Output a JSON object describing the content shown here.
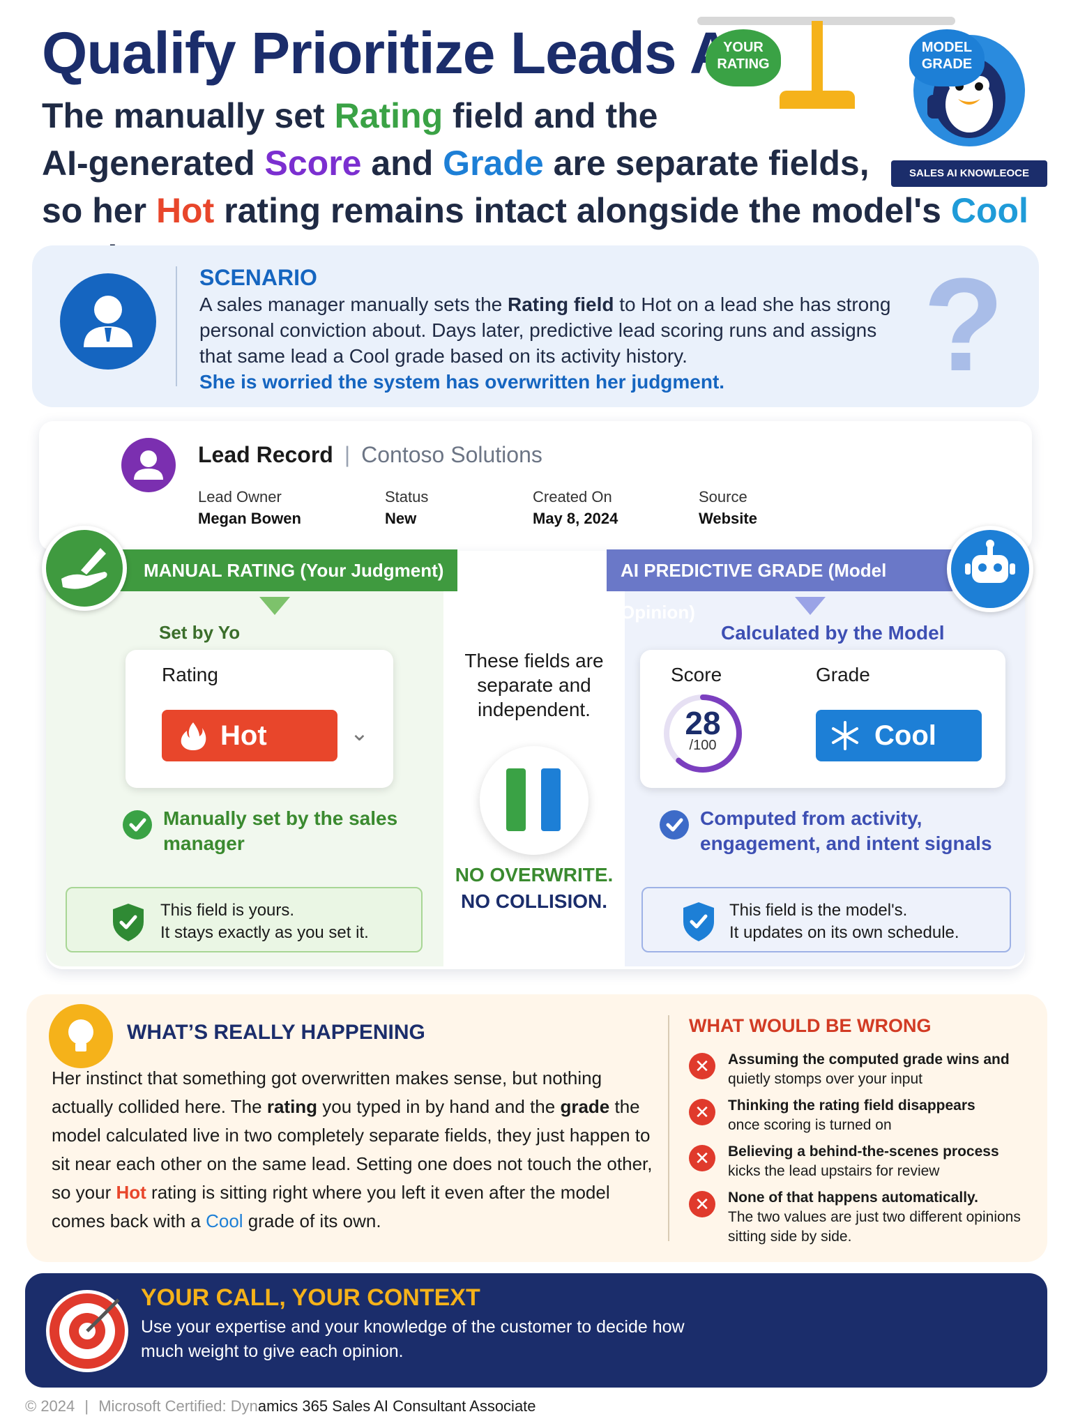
{
  "header": {
    "title": "Qualify Prioritize Leads Ai:",
    "line1_a": "The manually set ",
    "line1_rating": "Rating",
    "line1_b": " field and the",
    "line2_a": "AI-generated ",
    "line2_score": "Score",
    "line2_b": " and ",
    "line2_grade": "Grade",
    "line2_c": " are separate fields,",
    "line3_a": "so her ",
    "line3_hot": "Hot",
    "line3_b": " rating remains intact alongside the model's ",
    "line3_cool": "Cool",
    "line3_c": " grade"
  },
  "mascot": {
    "ribbon": "SALES AI KNOWLEOCE",
    "icon": "penguin-thumbs-up-icon"
  },
  "scenario": {
    "label": "SCENARIO",
    "body_a": "A sales manager manually sets the ",
    "body_bold": "Rating field",
    "body_b": " to Hot on a lead she has strong personal conviction about. Days later, predictive lead scoring runs and assigns that same lead a Cool grade based on its activity history.",
    "worry": "She is worried the system has overwritten her judgment.",
    "qmark": "?"
  },
  "lead": {
    "title": "Lead Record",
    "separator": "|",
    "company": "Contoso Solutions",
    "fields": [
      {
        "key": "Lead Owner",
        "value": "Megan Bowen"
      },
      {
        "key": "Status",
        "value": "New"
      },
      {
        "key": "Created On",
        "value": "May 8, 2024"
      },
      {
        "key": "Source",
        "value": "Website"
      }
    ]
  },
  "manual": {
    "banner_bold": "MANUAL RATING",
    "banner_rest": " (Your Judgment)",
    "set_by": "Set by Yo",
    "rating_label": "Rating",
    "rating_value": "Hot",
    "note": "Manually set by the sales manager",
    "box_line1": "This field is yours.",
    "box_line2": "It stays exactly as you set it."
  },
  "center": {
    "text": "These fields are separate and independent.",
    "no1": "NO OVERWRITE.",
    "no2": "NO COLLISION."
  },
  "ai": {
    "banner_bold": "AI PREDICTIVE GRADE",
    "banner_rest": " (Model Opinion)",
    "calc_by": "Calculated by the Model",
    "score_label": "Score",
    "grade_label": "Grade",
    "score_value": "28",
    "score_max": "/100",
    "score_fraction": 0.28,
    "grade_value": "Cool",
    "note": "Computed from activity, engagement, and intent signals",
    "box_line1": "This field is the model's.",
    "box_line2": "It updates on its own schedule."
  },
  "happening": {
    "title": "WHAT’S REALLY HAPPENING",
    "p1": "Her instinct that something got overwritten makes sense, but nothing actually collided here. The ",
    "rating": "rating",
    "p2": " you typed in by hand and the ",
    "grade": "grade",
    "p3": " the model calculated live in two completely separate fields, they just happen to sit near each other on the same lead. Setting one does not touch the other, so your ",
    "hot": "Hot",
    "p4": " rating is sitting right where you left it even after the model comes back with a ",
    "cool": "Cool",
    "p5": " grade of its own."
  },
  "wrong": {
    "title": "WHAT WOULD BE WRONG",
    "items": [
      {
        "bold": "Assuming the computed grade wins and",
        "rest": "quietly stomps over your input"
      },
      {
        "bold": "Thinking the rating field disappears",
        "rest": "once scoring is turned on"
      },
      {
        "bold": "Believing a behind-the-scenes process",
        "rest": "kicks the lead upstairs for review"
      },
      {
        "bold": "None of that happens automatically.",
        "rest": "The two values are just two different opinions sitting side by side."
      }
    ]
  },
  "footer": {
    "title": "YOUR CALL, YOUR CONTEXT",
    "body": "Use your expertise and your knowledge of the customer to decide how much weight to give each opinion.",
    "left_pan": "YOUR RATING",
    "right_pan": "MODEL GRADE"
  },
  "copyright": {
    "year": "© 2024",
    "sep": "|",
    "prefix": "Microsoft Certified: Dyn",
    "rest": "amics 365 Sales AI Consultant Associate"
  },
  "colors": {
    "navy": "#1b2d6b",
    "green": "#3aa245",
    "blue": "#1d7fd6",
    "red": "#e8462b",
    "purple": "#7b2fd0",
    "amber": "#f5b21a"
  }
}
